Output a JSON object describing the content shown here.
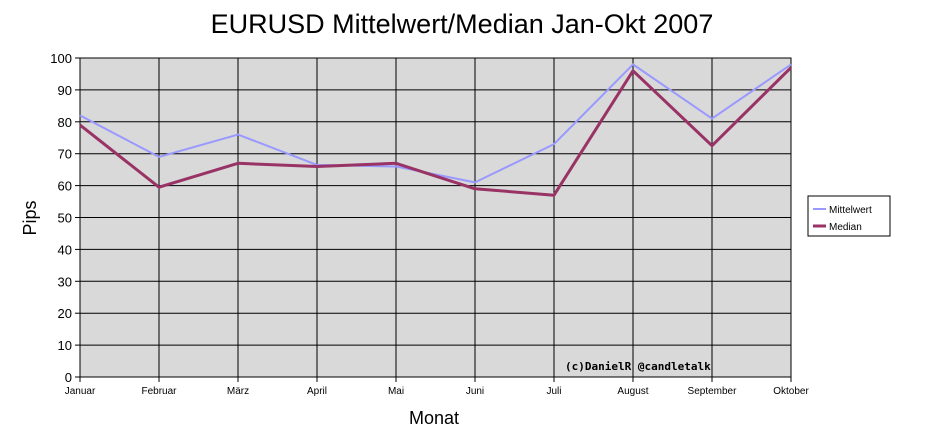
{
  "chart_data": {
    "type": "line",
    "title": "EURUSD Mittelwert/Median Jan-Okt 2007",
    "xlabel": "Monat",
    "ylabel": "Pips",
    "categories": [
      "Januar",
      "Februar",
      "März",
      "April",
      "Mai",
      "Juni",
      "Juli",
      "August",
      "September",
      "Oktober"
    ],
    "ylim": [
      0,
      100
    ],
    "yticks": [
      0,
      10,
      20,
      30,
      40,
      50,
      60,
      70,
      80,
      90,
      100
    ],
    "grid": true,
    "legend_position": "right",
    "plot_background": "#d9d9d9",
    "series": [
      {
        "name": "Mittelwert",
        "color": "#9999ff",
        "values": [
          82,
          69,
          76,
          66.5,
          66,
          61,
          73,
          98,
          81,
          98
        ]
      },
      {
        "name": "Median",
        "color": "#993366",
        "values": [
          79,
          59.5,
          67,
          66,
          67,
          59,
          57,
          96,
          72.5,
          97
        ]
      }
    ],
    "annotation": "(c)DanielR @candletalk"
  }
}
